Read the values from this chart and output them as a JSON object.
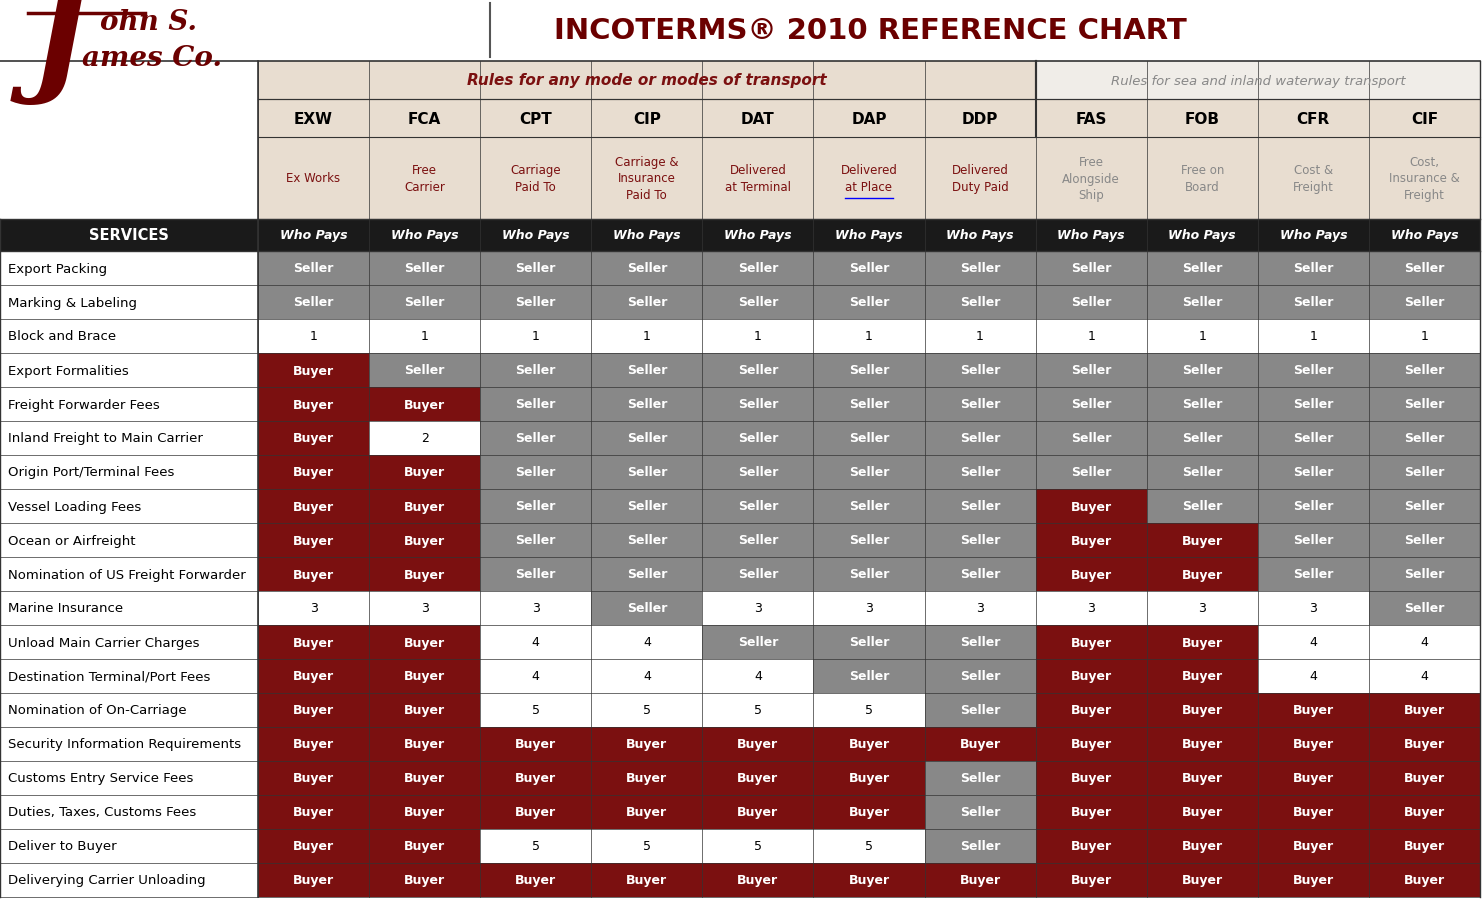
{
  "title": "INCOTERMS® 2010 REFERENCE CHART",
  "title_color": "#6B0000",
  "bg_color": "#FFFFFF",
  "header_bg_any": "#E8DDD0",
  "header_bg_sea": "#F0EDE8",
  "columns": [
    "EXW",
    "FCA",
    "CPT",
    "CIP",
    "DAT",
    "DAP",
    "DDP",
    "FAS",
    "FOB",
    "CFR",
    "CIF"
  ],
  "col_subtitles": [
    "Ex Works",
    "Free\nCarrier",
    "Carriage\nPaid To",
    "Carriage &\nInsurance\nPaid To",
    "Delivered\nat Terminal",
    "Delivered\nat Place",
    "Delivered\nDuty Paid",
    "Free\nAlongside\nShip",
    "Free on\nBoard",
    "Cost &\nFreight",
    "Cost,\nInsurance &\nFreight"
  ],
  "group1_label": "Rules for any mode or modes of transport",
  "group2_label": "Rules for sea and inland waterway transport",
  "services_label": "SERVICES",
  "who_pays": "Who Pays",
  "rows": [
    "Export Packing",
    "Marking & Labeling",
    "Block and Brace",
    "Export Formalities",
    "Freight Forwarder Fees",
    "Inland Freight to Main Carrier",
    "Origin Port/Terminal Fees",
    "Vessel Loading Fees",
    "Ocean or Airfreight",
    "Nomination of US Freight Forwarder",
    "Marine Insurance",
    "Unload Main Carrier Charges",
    "Destination Terminal/Port Fees",
    "Nomination of On-Carriage",
    "Security Information Requirements",
    "Customs Entry Service Fees",
    "Duties, Taxes, Customs Fees",
    "Deliver to Buyer",
    "Deliverying Carrier Unloading"
  ],
  "data": [
    [
      "Seller",
      "Seller",
      "Seller",
      "Seller",
      "Seller",
      "Seller",
      "Seller",
      "Seller",
      "Seller",
      "Seller",
      "Seller"
    ],
    [
      "Seller",
      "Seller",
      "Seller",
      "Seller",
      "Seller",
      "Seller",
      "Seller",
      "Seller",
      "Seller",
      "Seller",
      "Seller"
    ],
    [
      "1",
      "1",
      "1",
      "1",
      "1",
      "1",
      "1",
      "1",
      "1",
      "1",
      "1"
    ],
    [
      "Buyer",
      "Seller",
      "Seller",
      "Seller",
      "Seller",
      "Seller",
      "Seller",
      "Seller",
      "Seller",
      "Seller",
      "Seller"
    ],
    [
      "Buyer",
      "Buyer",
      "Seller",
      "Seller",
      "Seller",
      "Seller",
      "Seller",
      "Seller",
      "Seller",
      "Seller",
      "Seller"
    ],
    [
      "Buyer",
      "2",
      "Seller",
      "Seller",
      "Seller",
      "Seller",
      "Seller",
      "Seller",
      "Seller",
      "Seller",
      "Seller"
    ],
    [
      "Buyer",
      "Buyer",
      "Seller",
      "Seller",
      "Seller",
      "Seller",
      "Seller",
      "Seller",
      "Seller",
      "Seller",
      "Seller"
    ],
    [
      "Buyer",
      "Buyer",
      "Seller",
      "Seller",
      "Seller",
      "Seller",
      "Seller",
      "Buyer",
      "Seller",
      "Seller",
      "Seller"
    ],
    [
      "Buyer",
      "Buyer",
      "Seller",
      "Seller",
      "Seller",
      "Seller",
      "Seller",
      "Buyer",
      "Buyer",
      "Seller",
      "Seller"
    ],
    [
      "Buyer",
      "Buyer",
      "Seller",
      "Seller",
      "Seller",
      "Seller",
      "Seller",
      "Buyer",
      "Buyer",
      "Seller",
      "Seller"
    ],
    [
      "3",
      "3",
      "3",
      "Seller",
      "3",
      "3",
      "3",
      "3",
      "3",
      "3",
      "Seller"
    ],
    [
      "Buyer",
      "Buyer",
      "4",
      "4",
      "Seller",
      "Seller",
      "Seller",
      "Buyer",
      "Buyer",
      "4",
      "4"
    ],
    [
      "Buyer",
      "Buyer",
      "4",
      "4",
      "4",
      "Seller",
      "Seller",
      "Buyer",
      "Buyer",
      "4",
      "4"
    ],
    [
      "Buyer",
      "Buyer",
      "5",
      "5",
      "5",
      "5",
      "Seller",
      "Buyer",
      "Buyer",
      "Buyer",
      "Buyer"
    ],
    [
      "Buyer",
      "Buyer",
      "Buyer",
      "Buyer",
      "Buyer",
      "Buyer",
      "Buyer",
      "Buyer",
      "Buyer",
      "Buyer",
      "Buyer"
    ],
    [
      "Buyer",
      "Buyer",
      "Buyer",
      "Buyer",
      "Buyer",
      "Buyer",
      "Seller",
      "Buyer",
      "Buyer",
      "Buyer",
      "Buyer"
    ],
    [
      "Buyer",
      "Buyer",
      "Buyer",
      "Buyer",
      "Buyer",
      "Buyer",
      "Seller",
      "Buyer",
      "Buyer",
      "Buyer",
      "Buyer"
    ],
    [
      "Buyer",
      "Buyer",
      "5",
      "5",
      "5",
      "5",
      "Seller",
      "Buyer",
      "Buyer",
      "Buyer",
      "Buyer"
    ],
    [
      "Buyer",
      "Buyer",
      "Buyer",
      "Buyer",
      "Buyer",
      "Buyer",
      "Buyer",
      "Buyer",
      "Buyer",
      "Buyer",
      "Buyer"
    ]
  ],
  "dark_red": "#7B1010",
  "seller_gray": "#888888",
  "white": "#FFFFFF",
  "black": "#000000",
  "header_black": "#1A1A1A",
  "logo_red": "#6B0000",
  "line_color": "#333333"
}
